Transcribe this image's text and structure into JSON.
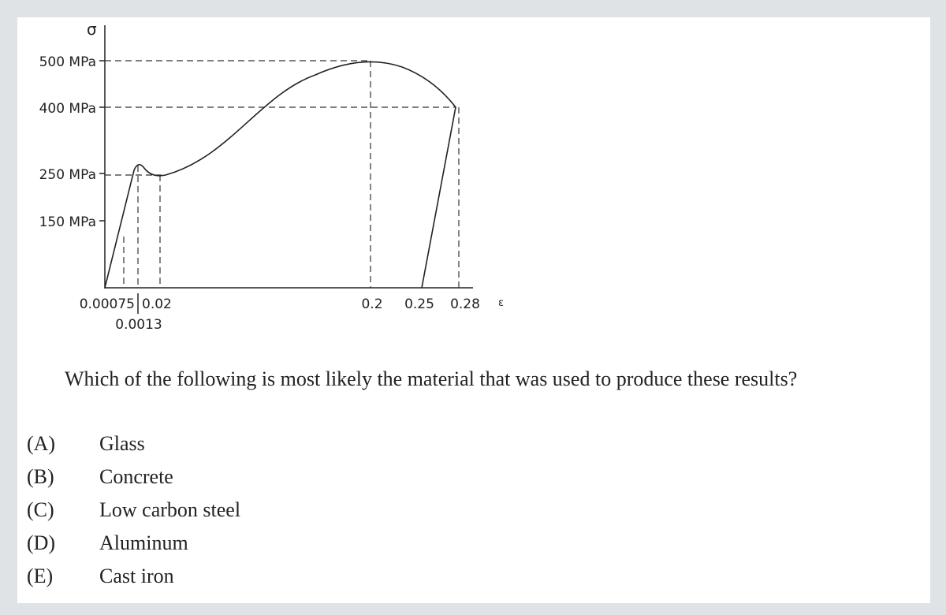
{
  "diagram": {
    "y_axis_label": "σ",
    "x_axis_label": "ε",
    "y_labels": [
      "500 MPa",
      "400 MPa",
      "250 MPa",
      "150 MPa"
    ],
    "x_labels_upper": [
      "0.00075",
      "0.02",
      "0.2",
      "0.25",
      "0.28"
    ],
    "x_labels_lower": [
      "0.0013"
    ]
  },
  "question": "Which of the following is most likely the material that was used to produce these results?",
  "options": [
    {
      "letter": "(A)",
      "text": "Glass"
    },
    {
      "letter": "(B)",
      "text": "Concrete"
    },
    {
      "letter": "(C)",
      "text": "Low carbon steel"
    },
    {
      "letter": "(D)",
      "text": "Aluminum"
    },
    {
      "letter": "(E)",
      "text": "Cast iron"
    }
  ]
}
